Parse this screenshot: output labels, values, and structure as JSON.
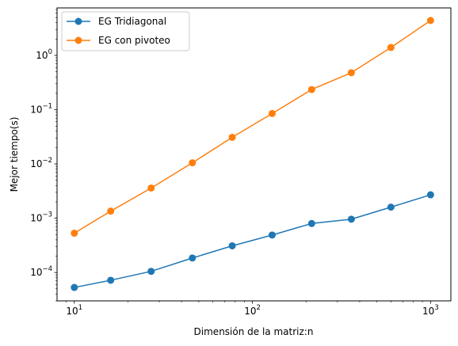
{
  "chart_data": {
    "type": "line",
    "xlabel": "Dimensión de la matriz:n",
    "ylabel": "Mejor tiempo(s)",
    "xscale": "log",
    "yscale": "log",
    "xlim": [
      8,
      1300
    ],
    "ylim": [
      3e-05,
      7.5
    ],
    "grid": false,
    "legend_position": "top-left",
    "x": [
      10,
      16,
      27,
      46,
      77,
      129,
      215,
      359,
      599,
      1000
    ],
    "x_ticks": [
      {
        "value": 10,
        "base": "10",
        "exp": "1"
      },
      {
        "value": 100,
        "base": "10",
        "exp": "2"
      },
      {
        "value": 1000,
        "base": "10",
        "exp": "3"
      }
    ],
    "y_ticks": [
      {
        "value": 0.0001,
        "base": "10",
        "exp": "−4"
      },
      {
        "value": 0.001,
        "base": "10",
        "exp": "−3"
      },
      {
        "value": 0.01,
        "base": "10",
        "exp": "−2"
      },
      {
        "value": 0.1,
        "base": "10",
        "exp": "−1"
      },
      {
        "value": 1,
        "base": "10",
        "exp": "0"
      }
    ],
    "series": [
      {
        "name": "EG Tridiagonal",
        "color": "#1f77b4",
        "values": [
          5.3e-05,
          7.2e-05,
          0.000105,
          0.000185,
          0.00031,
          0.00049,
          0.0008,
          0.00096,
          0.0016,
          0.0027
        ]
      },
      {
        "name": "EG con pivoteo",
        "color": "#ff7f0e",
        "values": [
          0.00053,
          0.00135,
          0.0036,
          0.0105,
          0.031,
          0.085,
          0.235,
          0.48,
          1.4,
          4.4
        ]
      }
    ]
  }
}
